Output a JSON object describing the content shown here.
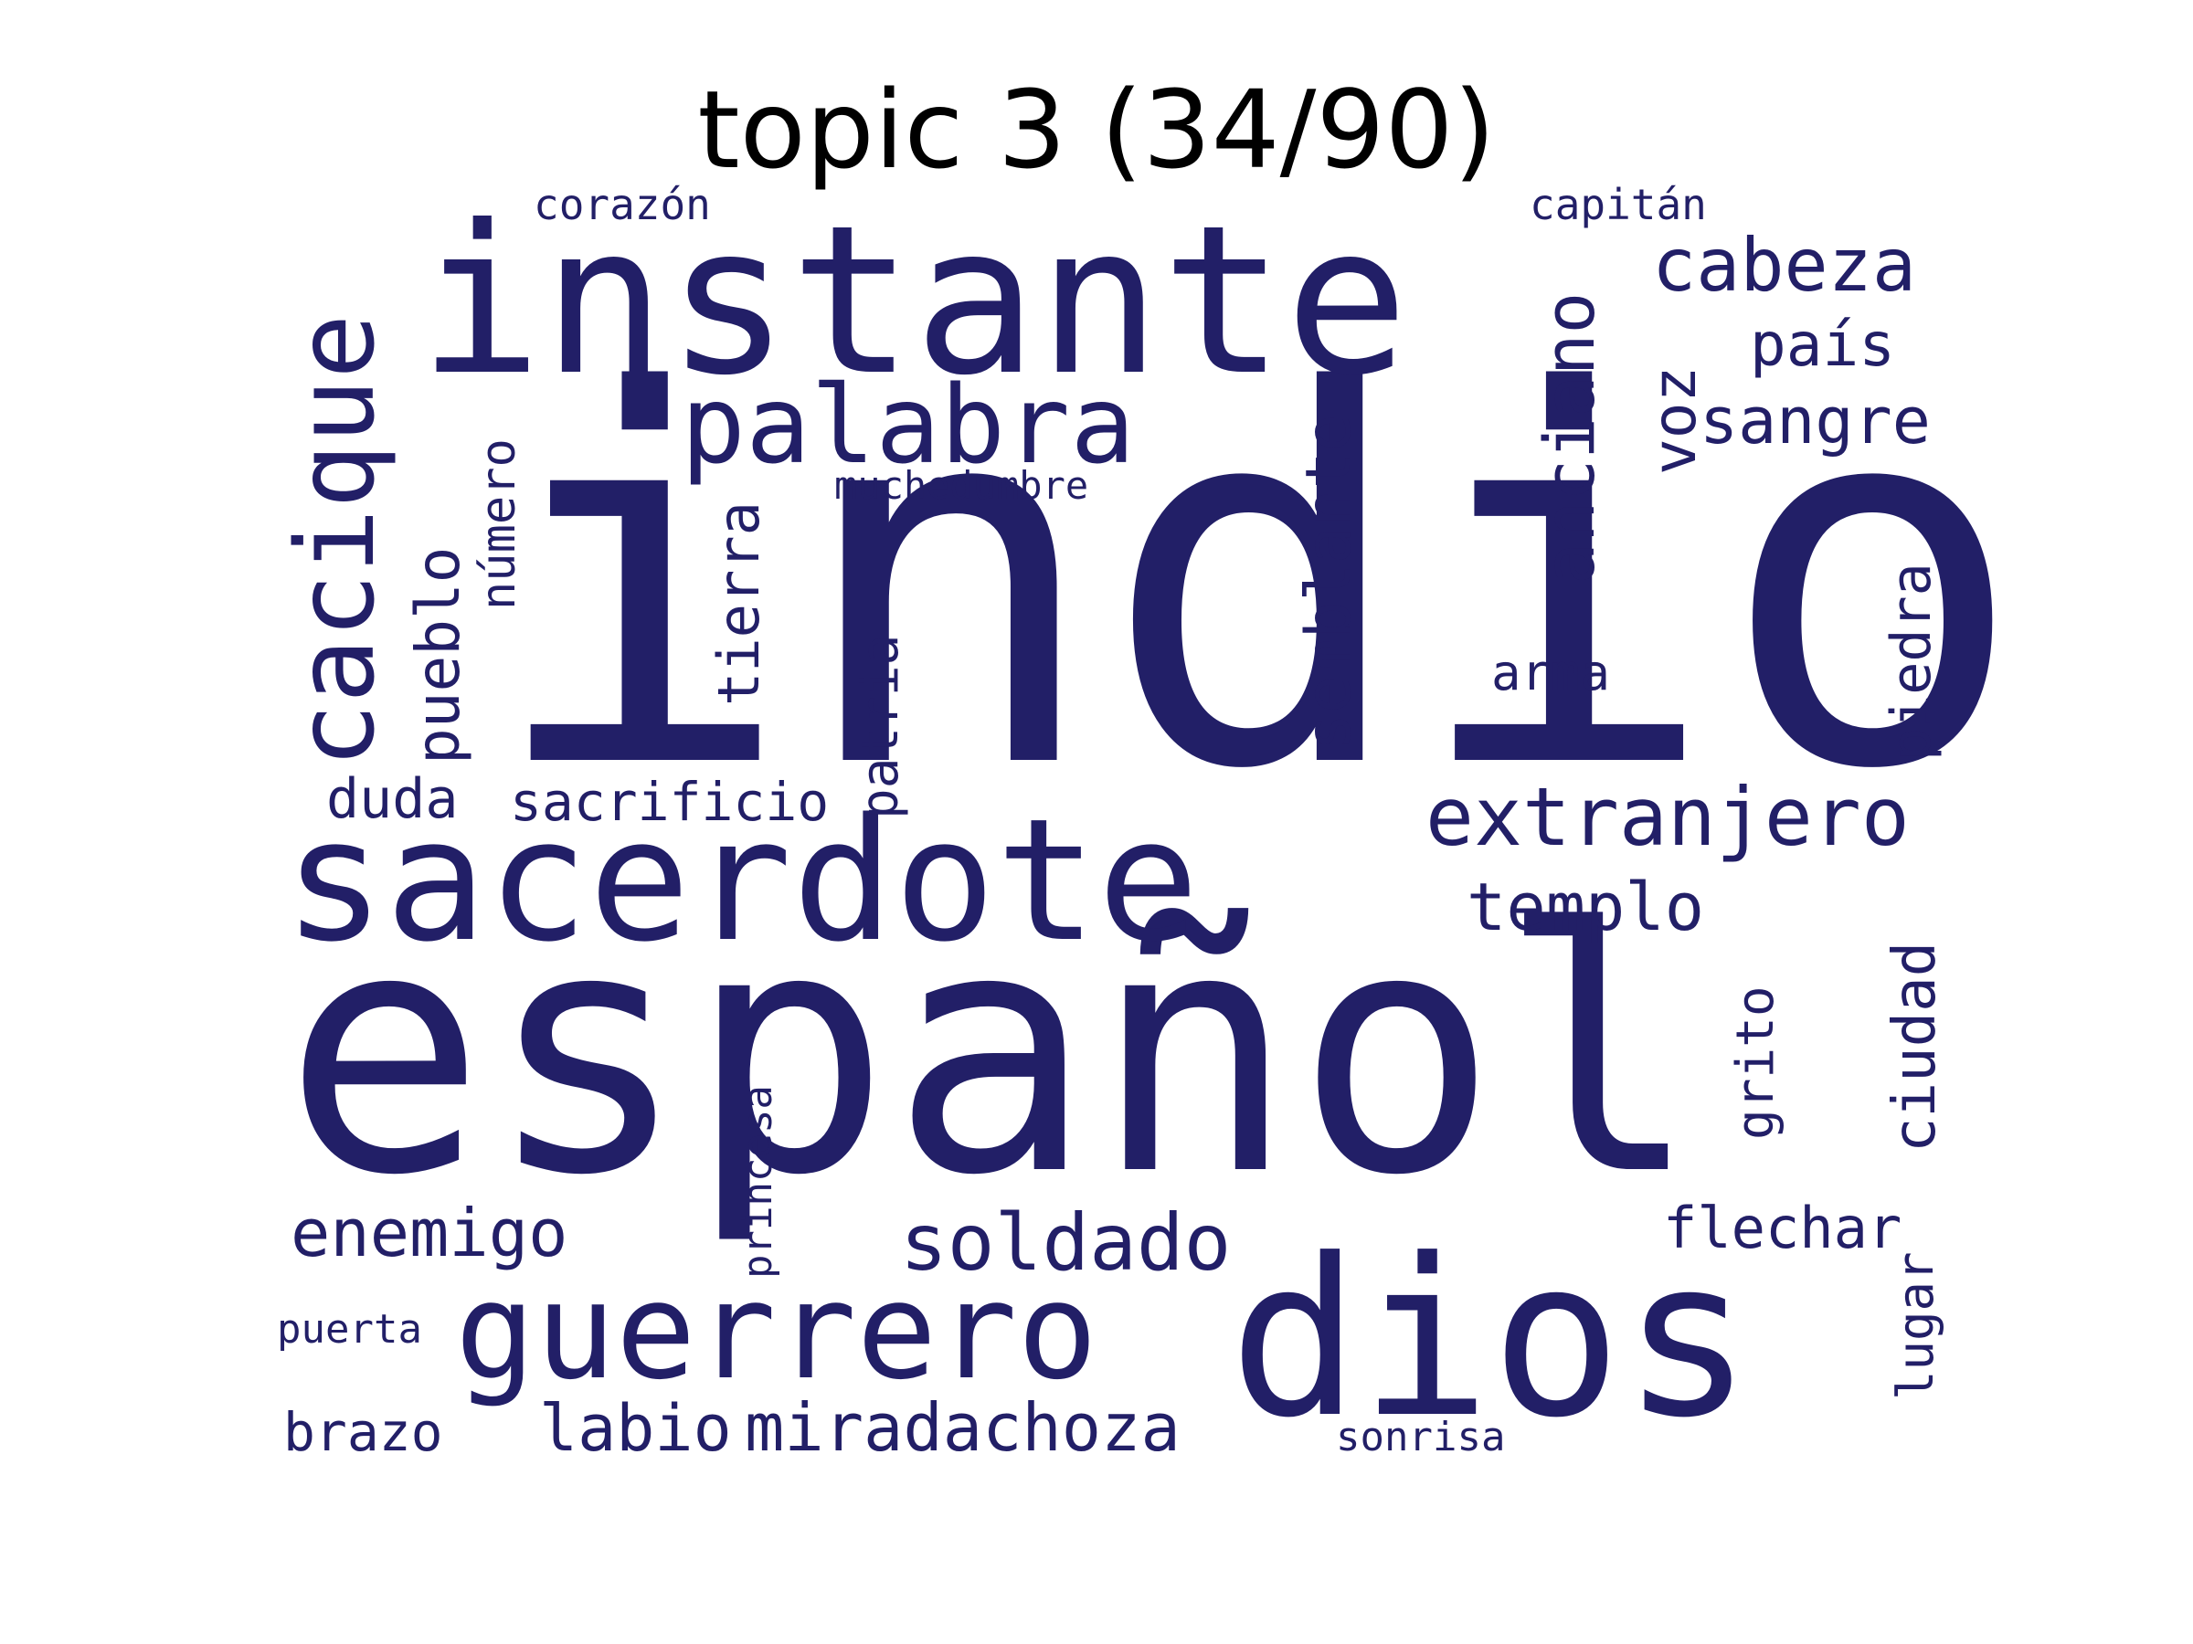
{
  "chart_data": {
    "type": "wordcloud",
    "title": "topic 3 (34/90)",
    "word_color": "#221f67",
    "background": "#ffffff",
    "words": [
      {
        "text": "indio",
        "rank": 1,
        "orientation": "horizontal"
      },
      {
        "text": "español",
        "rank": 2,
        "orientation": "horizontal"
      },
      {
        "text": "dios",
        "rank": 3,
        "orientation": "horizontal"
      },
      {
        "text": "instante",
        "rank": 4,
        "orientation": "horizontal"
      },
      {
        "text": "sacerdote",
        "rank": 5,
        "orientation": "horizontal"
      },
      {
        "text": "guerrero",
        "rank": 6,
        "orientation": "horizontal"
      },
      {
        "text": "cacique",
        "rank": 7,
        "orientation": "vertical"
      },
      {
        "text": "palabra",
        "rank": 8,
        "orientation": "horizontal"
      },
      {
        "text": "extranjero",
        "rank": 9,
        "orientation": "horizontal"
      },
      {
        "text": "soldado",
        "rank": 10,
        "orientation": "horizontal"
      },
      {
        "text": "cabeza",
        "rank": 11,
        "orientation": "horizontal"
      },
      {
        "text": "anciano",
        "rank": 12,
        "orientation": "vertical"
      },
      {
        "text": "semblante",
        "rank": 13,
        "orientation": "vertical"
      },
      {
        "text": "enemigo",
        "rank": 14,
        "orientation": "horizontal"
      },
      {
        "text": "miradachoza",
        "rank": 15,
        "orientation": "horizontal"
      },
      {
        "text": "templo",
        "rank": 16,
        "orientation": "horizontal"
      },
      {
        "text": "pueblo",
        "rank": 17,
        "orientation": "vertical"
      },
      {
        "text": "sangre",
        "rank": 18,
        "orientation": "horizontal"
      },
      {
        "text": "ciudad",
        "rank": 19,
        "orientation": "vertical"
      },
      {
        "text": "país",
        "rank": 20,
        "orientation": "horizontal"
      },
      {
        "text": "voz",
        "rank": 21,
        "orientation": "vertical"
      },
      {
        "text": "piedra",
        "rank": 22,
        "orientation": "vertical"
      },
      {
        "text": "tierra",
        "rank": 23,
        "orientation": "vertical"
      },
      {
        "text": "labio",
        "rank": 24,
        "orientation": "horizontal"
      },
      {
        "text": "flechar",
        "rank": 25,
        "orientation": "horizontal"
      },
      {
        "text": "patria",
        "rank": 26,
        "orientation": "vertical"
      },
      {
        "text": "grito",
        "rank": 27,
        "orientation": "vertical"
      },
      {
        "text": "lugar",
        "rank": 28,
        "orientation": "vertical"
      },
      {
        "text": "duda",
        "rank": 29,
        "orientation": "horizontal"
      },
      {
        "text": "sacrificio",
        "rank": 30,
        "orientation": "horizontal"
      },
      {
        "text": "número",
        "rank": 31,
        "orientation": "vertical"
      },
      {
        "text": "brazo",
        "rank": 32,
        "orientation": "horizontal"
      },
      {
        "text": "arma",
        "rank": 33,
        "orientation": "horizontal"
      },
      {
        "text": "princesa",
        "rank": 34,
        "orientation": "vertical"
      },
      {
        "text": "corazón",
        "rank": 35,
        "orientation": "horizontal"
      },
      {
        "text": "capitán",
        "rank": 36,
        "orientation": "horizontal"
      },
      {
        "text": "muchedumbre",
        "rank": 37,
        "orientation": "horizontal"
      },
      {
        "text": "sonrisa",
        "rank": 38,
        "orientation": "horizontal"
      },
      {
        "text": "puerta",
        "rank": 39,
        "orientation": "horizontal"
      }
    ]
  }
}
